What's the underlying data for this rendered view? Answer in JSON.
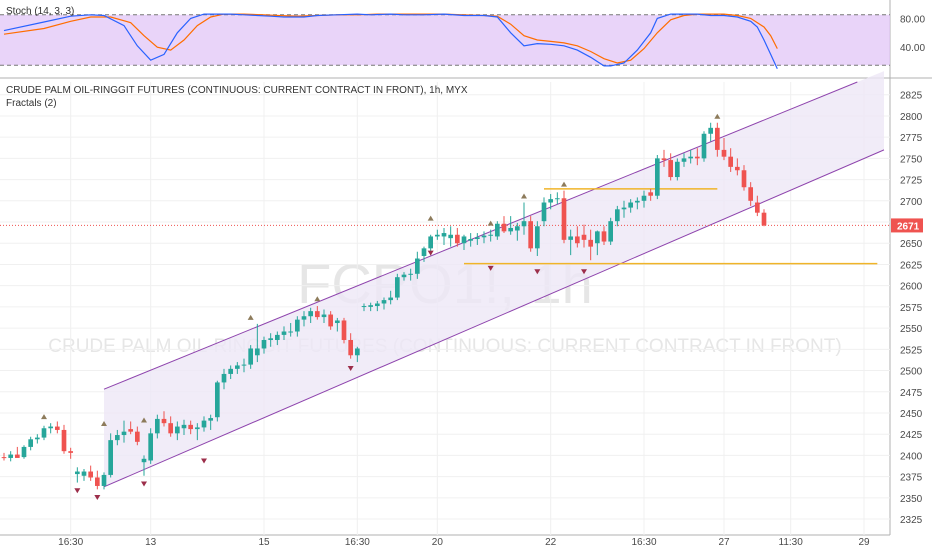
{
  "stoch": {
    "title": "Stoch (14, 3, 3)",
    "ticks": [
      80,
      40
    ],
    "tick_labels": [
      "80.00",
      "40.00"
    ],
    "ylim": [
      0,
      100
    ],
    "bands": [
      85,
      15
    ],
    "k": [
      [
        0,
        63
      ],
      [
        6,
        75
      ],
      [
        10,
        83
      ],
      [
        13,
        85
      ],
      [
        15,
        84
      ],
      [
        18,
        70
      ],
      [
        20,
        42
      ],
      [
        22,
        22
      ],
      [
        24,
        30
      ],
      [
        26,
        60
      ],
      [
        28,
        80
      ],
      [
        30,
        86
      ],
      [
        32,
        86
      ],
      [
        34,
        86
      ],
      [
        36,
        85
      ],
      [
        38,
        84
      ],
      [
        40,
        83
      ],
      [
        42,
        82
      ],
      [
        45,
        82
      ],
      [
        47,
        84
      ],
      [
        50,
        85
      ],
      [
        53,
        86
      ],
      [
        55,
        85
      ],
      [
        58,
        86
      ],
      [
        60,
        85
      ],
      [
        63,
        85
      ],
      [
        66,
        86
      ],
      [
        69,
        84
      ],
      [
        72,
        84
      ],
      [
        74,
        82
      ],
      [
        76,
        60
      ],
      [
        78,
        42
      ],
      [
        80,
        45
      ],
      [
        82,
        44
      ],
      [
        84,
        42
      ],
      [
        86,
        36
      ],
      [
        88,
        26
      ],
      [
        90,
        14
      ],
      [
        91,
        14
      ],
      [
        93,
        18
      ],
      [
        95,
        36
      ],
      [
        97,
        60
      ],
      [
        98,
        80
      ],
      [
        100,
        86
      ],
      [
        102,
        86
      ],
      [
        104,
        86
      ],
      [
        106,
        84
      ],
      [
        108,
        84
      ],
      [
        110,
        82
      ],
      [
        112,
        76
      ],
      [
        113,
        68
      ],
      [
        114,
        50
      ],
      [
        115,
        30
      ],
      [
        116,
        10
      ]
    ],
    "d": [
      [
        0,
        58
      ],
      [
        6,
        66
      ],
      [
        10,
        76
      ],
      [
        13,
        82
      ],
      [
        16,
        82
      ],
      [
        19,
        74
      ],
      [
        21,
        56
      ],
      [
        23,
        40
      ],
      [
        25,
        36
      ],
      [
        27,
        50
      ],
      [
        29,
        70
      ],
      [
        31,
        82
      ],
      [
        33,
        86
      ],
      [
        36,
        86
      ],
      [
        39,
        85
      ],
      [
        41,
        84
      ],
      [
        44,
        83
      ],
      [
        47,
        84
      ],
      [
        50,
        85
      ],
      [
        53,
        85
      ],
      [
        56,
        86
      ],
      [
        59,
        86
      ],
      [
        63,
        86
      ],
      [
        66,
        86
      ],
      [
        69,
        85
      ],
      [
        72,
        84
      ],
      [
        74,
        83
      ],
      [
        76,
        72
      ],
      [
        78,
        56
      ],
      [
        80,
        50
      ],
      [
        82,
        48
      ],
      [
        84,
        46
      ],
      [
        86,
        42
      ],
      [
        88,
        34
      ],
      [
        90,
        24
      ],
      [
        92,
        18
      ],
      [
        94,
        22
      ],
      [
        96,
        38
      ],
      [
        98,
        60
      ],
      [
        100,
        78
      ],
      [
        102,
        84
      ],
      [
        104,
        86
      ],
      [
        106,
        86
      ],
      [
        108,
        86
      ],
      [
        110,
        84
      ],
      [
        112,
        80
      ],
      [
        114,
        68
      ],
      [
        115,
        56
      ],
      [
        116,
        38
      ]
    ],
    "k_color": "#2962ff",
    "d_color": "#ff6d00",
    "bg_color": "#e1c6f7"
  },
  "main": {
    "title": "CRUDE PALM OIL-RINGGIT FUTURES (CONTINUOUS: CURRENT CONTRACT IN FRONT), 1h, MYX",
    "subtitle": "Fractals (2)",
    "watermark_symbol": "FCPO1!, 1h",
    "watermark_name": "CRUDE PALM OIL-RINGGIT FUTURES (CONTINUOUS: CURRENT CONTRACT IN FRONT)",
    "last_price": "2671"
  },
  "chart_data": {
    "type": "candlestick",
    "y_ticks": [
      2825,
      2800,
      2775,
      2750,
      2725,
      2700,
      2675,
      2650,
      2625,
      2600,
      2575,
      2550,
      2525,
      2500,
      2475,
      2450,
      2425,
      2400,
      2375,
      2350,
      2325
    ],
    "ylim": [
      2318,
      2840
    ],
    "xlim": [
      0,
      132
    ],
    "x_ticks": [
      {
        "i": 10,
        "label": "16:30"
      },
      {
        "i": 22,
        "label": "13"
      },
      {
        "i": 39,
        "label": "15"
      },
      {
        "i": 53,
        "label": "16:30"
      },
      {
        "i": 65,
        "label": "20"
      },
      {
        "i": 82,
        "label": "22"
      },
      {
        "i": 96,
        "label": "16:30"
      },
      {
        "i": 108,
        "label": "27"
      },
      {
        "i": 118,
        "label": "11:30"
      },
      {
        "i": 129,
        "label": "29"
      }
    ],
    "candles": [
      [
        0,
        2398,
        2403,
        2394,
        2397
      ],
      [
        1,
        2397,
        2405,
        2393,
        2401
      ],
      [
        2,
        2401,
        2410,
        2398,
        2397
      ],
      [
        3,
        2398,
        2412,
        2396,
        2410
      ],
      [
        4,
        2410,
        2422,
        2406,
        2419
      ],
      [
        5,
        2419,
        2425,
        2414,
        2421
      ],
      [
        6,
        2421,
        2435,
        2418,
        2432
      ],
      [
        7,
        2432,
        2438,
        2426,
        2434
      ],
      [
        8,
        2434,
        2440,
        2426,
        2430
      ],
      [
        9,
        2430,
        2436,
        2402,
        2405
      ],
      [
        10,
        2405,
        2409,
        2396,
        2403
      ],
      [
        11,
        2378,
        2386,
        2368,
        2381
      ],
      [
        12,
        2376,
        2384,
        2370,
        2381
      ],
      [
        13,
        2381,
        2388,
        2370,
        2374
      ],
      [
        14,
        2374,
        2382,
        2360,
        2364
      ],
      [
        15,
        2364,
        2380,
        2360,
        2377
      ],
      [
        16,
        2377,
        2426,
        2374,
        2418
      ],
      [
        17,
        2418,
        2430,
        2412,
        2424
      ],
      [
        18,
        2424,
        2441,
        2415,
        2428
      ],
      [
        19,
        2431,
        2440,
        2425,
        2428
      ],
      [
        20,
        2428,
        2434,
        2412,
        2416
      ],
      [
        21,
        2392,
        2400,
        2376,
        2396
      ],
      [
        22,
        2394,
        2432,
        2390,
        2426
      ],
      [
        23,
        2426,
        2448,
        2420,
        2443
      ],
      [
        24,
        2443,
        2452,
        2434,
        2438
      ],
      [
        25,
        2438,
        2446,
        2422,
        2426
      ],
      [
        26,
        2426,
        2440,
        2418,
        2434
      ],
      [
        27,
        2432,
        2442,
        2424,
        2436
      ],
      [
        28,
        2436,
        2441,
        2425,
        2431
      ],
      [
        29,
        2431,
        2438,
        2418,
        2433
      ],
      [
        30,
        2433,
        2446,
        2428,
        2441
      ],
      [
        31,
        2441,
        2448,
        2430,
        2444
      ],
      [
        32,
        2445,
        2488,
        2440,
        2486
      ],
      [
        33,
        2486,
        2502,
        2478,
        2496
      ],
      [
        34,
        2496,
        2506,
        2490,
        2502
      ],
      [
        35,
        2502,
        2510,
        2496,
        2506
      ],
      [
        36,
        2506,
        2514,
        2498,
        2507
      ],
      [
        37,
        2507,
        2530,
        2502,
        2526
      ],
      [
        38,
        2518,
        2555,
        2510,
        2526
      ],
      [
        39,
        2526,
        2540,
        2520,
        2536
      ],
      [
        40,
        2536,
        2544,
        2528,
        2538
      ],
      [
        41,
        2536,
        2546,
        2530,
        2542
      ],
      [
        42,
        2542,
        2552,
        2536,
        2546
      ],
      [
        43,
        2546,
        2556,
        2540,
        2546
      ],
      [
        44,
        2546,
        2564,
        2540,
        2560
      ],
      [
        45,
        2560,
        2570,
        2552,
        2564
      ],
      [
        46,
        2564,
        2574,
        2556,
        2570
      ],
      [
        47,
        2570,
        2576,
        2560,
        2563
      ],
      [
        48,
        2563,
        2572,
        2556,
        2566
      ],
      [
        49,
        2566,
        2570,
        2548,
        2552
      ],
      [
        50,
        2556,
        2562,
        2546,
        2559
      ],
      [
        51,
        2559,
        2562,
        2532,
        2536
      ],
      [
        52,
        2536,
        2544,
        2514,
        2518
      ],
      [
        53,
        2518,
        2528,
        2510,
        2526
      ],
      [
        54,
        2575,
        2579,
        2570,
        2576
      ],
      [
        55,
        2575,
        2580,
        2570,
        2577
      ],
      [
        56,
        2576,
        2582,
        2570,
        2579
      ],
      [
        57,
        2579,
        2586,
        2572,
        2583
      ],
      [
        58,
        2583,
        2594,
        2578,
        2586
      ],
      [
        59,
        2586,
        2614,
        2583,
        2610
      ],
      [
        60,
        2610,
        2616,
        2606,
        2613
      ],
      [
        61,
        2613,
        2620,
        2606,
        2614
      ],
      [
        62,
        2614,
        2640,
        2608,
        2632
      ],
      [
        63,
        2635,
        2646,
        2628,
        2644
      ],
      [
        64,
        2644,
        2660,
        2636,
        2658
      ],
      [
        65,
        2658,
        2666,
        2654,
        2660
      ],
      [
        66,
        2658,
        2668,
        2648,
        2662
      ],
      [
        67,
        2656,
        2670,
        2646,
        2660
      ],
      [
        68,
        2660,
        2668,
        2646,
        2650
      ],
      [
        69,
        2650,
        2660,
        2642,
        2658
      ],
      [
        70,
        2653,
        2662,
        2646,
        2655
      ],
      [
        71,
        2655,
        2662,
        2648,
        2657
      ],
      [
        72,
        2657,
        2664,
        2650,
        2659
      ],
      [
        73,
        2659,
        2666,
        2652,
        2660
      ],
      [
        74,
        2658,
        2676,
        2654,
        2673
      ],
      [
        75,
        2673,
        2682,
        2662,
        2664
      ],
      [
        76,
        2664,
        2682,
        2660,
        2668
      ],
      [
        77,
        2665,
        2674,
        2653,
        2670
      ],
      [
        78,
        2670,
        2698,
        2660,
        2676
      ],
      [
        79,
        2676,
        2682,
        2640,
        2644
      ],
      [
        80,
        2644,
        2676,
        2635,
        2670
      ],
      [
        81,
        2676,
        2704,
        2670,
        2698
      ],
      [
        82,
        2698,
        2708,
        2690,
        2702
      ],
      [
        83,
        2702,
        2710,
        2696,
        2703
      ],
      [
        84,
        2703,
        2712,
        2650,
        2654
      ],
      [
        85,
        2654,
        2666,
        2636,
        2658
      ],
      [
        86,
        2658,
        2670,
        2645,
        2650
      ],
      [
        87,
        2660,
        2672,
        2645,
        2654
      ],
      [
        88,
        2654,
        2666,
        2630,
        2646
      ],
      [
        89,
        2650,
        2665,
        2636,
        2664
      ],
      [
        90,
        2664,
        2670,
        2648,
        2652
      ],
      [
        91,
        2652,
        2680,
        2648,
        2676
      ],
      [
        92,
        2676,
        2694,
        2670,
        2690
      ],
      [
        93,
        2690,
        2700,
        2680,
        2692
      ],
      [
        94,
        2692,
        2702,
        2686,
        2698
      ],
      [
        95,
        2698,
        2704,
        2690,
        2700
      ],
      [
        96,
        2700,
        2712,
        2692,
        2706
      ],
      [
        97,
        2710,
        2714,
        2700,
        2706
      ],
      [
        98,
        2706,
        2754,
        2702,
        2750
      ],
      [
        99,
        2750,
        2760,
        2740,
        2748
      ],
      [
        100,
        2748,
        2756,
        2724,
        2728
      ],
      [
        101,
        2728,
        2750,
        2724,
        2746
      ],
      [
        102,
        2746,
        2756,
        2740,
        2750
      ],
      [
        103,
        2750,
        2760,
        2744,
        2752
      ],
      [
        104,
        2752,
        2762,
        2742,
        2750
      ],
      [
        105,
        2750,
        2782,
        2746,
        2779
      ],
      [
        106,
        2779,
        2792,
        2770,
        2786
      ],
      [
        107,
        2786,
        2792,
        2752,
        2760
      ],
      [
        108,
        2760,
        2774,
        2748,
        2752
      ],
      [
        109,
        2752,
        2762,
        2734,
        2740
      ],
      [
        110,
        2740,
        2750,
        2730,
        2736
      ],
      [
        111,
        2736,
        2742,
        2712,
        2716
      ],
      [
        112,
        2716,
        2722,
        2694,
        2700
      ],
      [
        113,
        2698,
        2706,
        2682,
        2686
      ],
      [
        114,
        2686,
        2690,
        2670,
        2671
      ]
    ],
    "fractal_up": [
      [
        6,
        2438
      ],
      [
        15,
        2430
      ],
      [
        21,
        2434
      ],
      [
        37,
        2555
      ],
      [
        47,
        2577
      ],
      [
        64,
        2672
      ],
      [
        73,
        2666
      ],
      [
        78,
        2698
      ],
      [
        84,
        2712
      ],
      [
        107,
        2792
      ]
    ],
    "fractal_down": [
      [
        11,
        2366
      ],
      [
        14,
        2358
      ],
      [
        21,
        2374
      ],
      [
        30,
        2401
      ],
      [
        52,
        2510
      ],
      [
        64,
        2646
      ],
      [
        73,
        2628
      ],
      [
        80,
        2624
      ],
      [
        87,
        2624
      ]
    ],
    "channel_upper": [
      [
        15,
        2478
      ],
      [
        128,
        2840
      ]
    ],
    "channel_lower": [
      [
        15,
        2363
      ],
      [
        132,
        2760
      ]
    ],
    "hlines": [
      {
        "x1": 81,
        "x2": 107,
        "y": 2714,
        "color": "#f0b429"
      },
      {
        "x1": 69,
        "x2": 131,
        "y": 2626,
        "color": "#f0b429"
      }
    ],
    "last_price": 2671,
    "up_color": "#26a69a",
    "down_color": "#ef5350",
    "channel_color": "#8e44ad",
    "channel_fill": "#ede7f6"
  }
}
